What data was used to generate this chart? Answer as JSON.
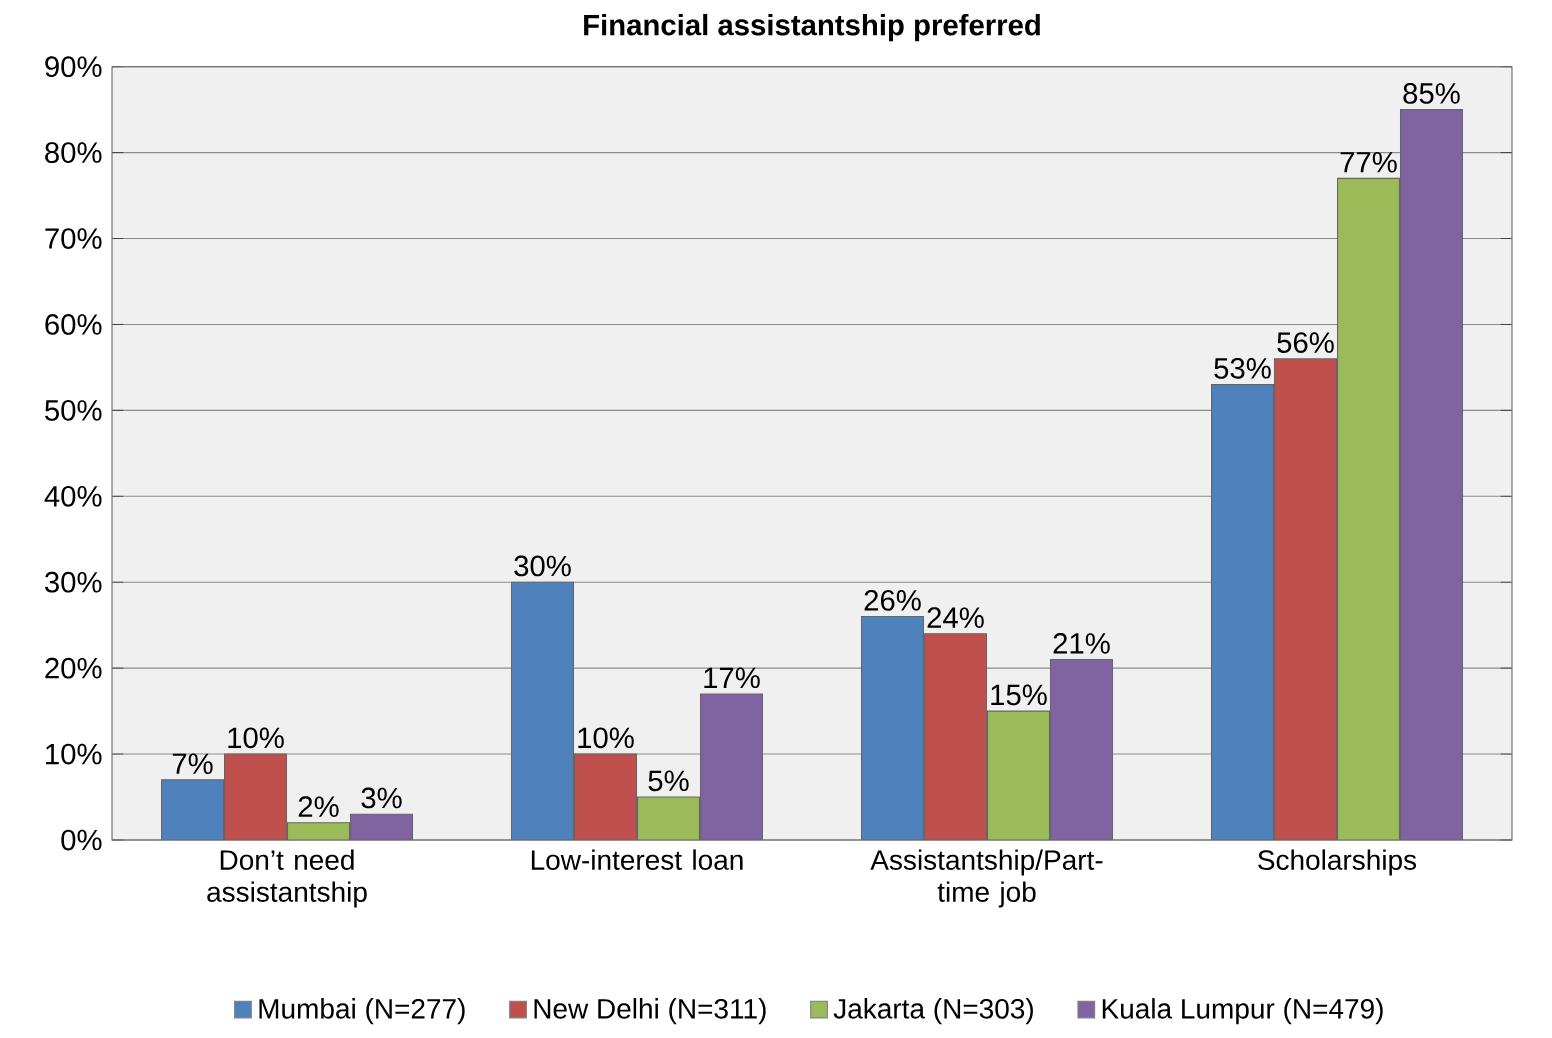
{
  "chart_data": {
    "type": "bar",
    "title": "Financial assistantship preferred",
    "categories": [
      "Don’t need assistantship",
      "Low-interest loan",
      "Assistantship/Part-time job",
      "Scholarships"
    ],
    "series": [
      {
        "name": "Mumbai (N=277)",
        "color": "#4f81bd",
        "values": [
          7,
          30,
          26,
          53
        ],
        "value_labels": [
          "7%",
          "30%",
          "26%",
          "53%"
        ]
      },
      {
        "name": "New Delhi (N=311)",
        "color": "#c0504d",
        "values": [
          10,
          10,
          24,
          56
        ],
        "value_labels": [
          "10%",
          "10%",
          "24%",
          "56%"
        ]
      },
      {
        "name": "Jakarta (N=303)",
        "color": "#9bbb59",
        "values": [
          2,
          5,
          15,
          77
        ],
        "value_labels": [
          "2%",
          "5%",
          "15%",
          "77%"
        ]
      },
      {
        "name": "Kuala Lumpur (N=479)",
        "color": "#8064a2",
        "values": [
          3,
          17,
          21,
          85
        ],
        "value_labels": [
          "3%",
          "17%",
          "21%",
          "85%"
        ]
      }
    ],
    "ylim": [
      0,
      90
    ],
    "yticks": [
      {
        "value": 0,
        "label": "0%"
      },
      {
        "value": 10,
        "label": "10%"
      },
      {
        "value": 20,
        "label": "20%"
      },
      {
        "value": 30,
        "label": "30%"
      },
      {
        "value": 40,
        "label": "40%"
      },
      {
        "value": 50,
        "label": "50%"
      },
      {
        "value": 60,
        "label": "60%"
      },
      {
        "value": 70,
        "label": "70%"
      },
      {
        "value": 80,
        "label": "80%"
      },
      {
        "value": 90,
        "label": "90%"
      }
    ],
    "grid": "y",
    "legend": "bottom"
  }
}
